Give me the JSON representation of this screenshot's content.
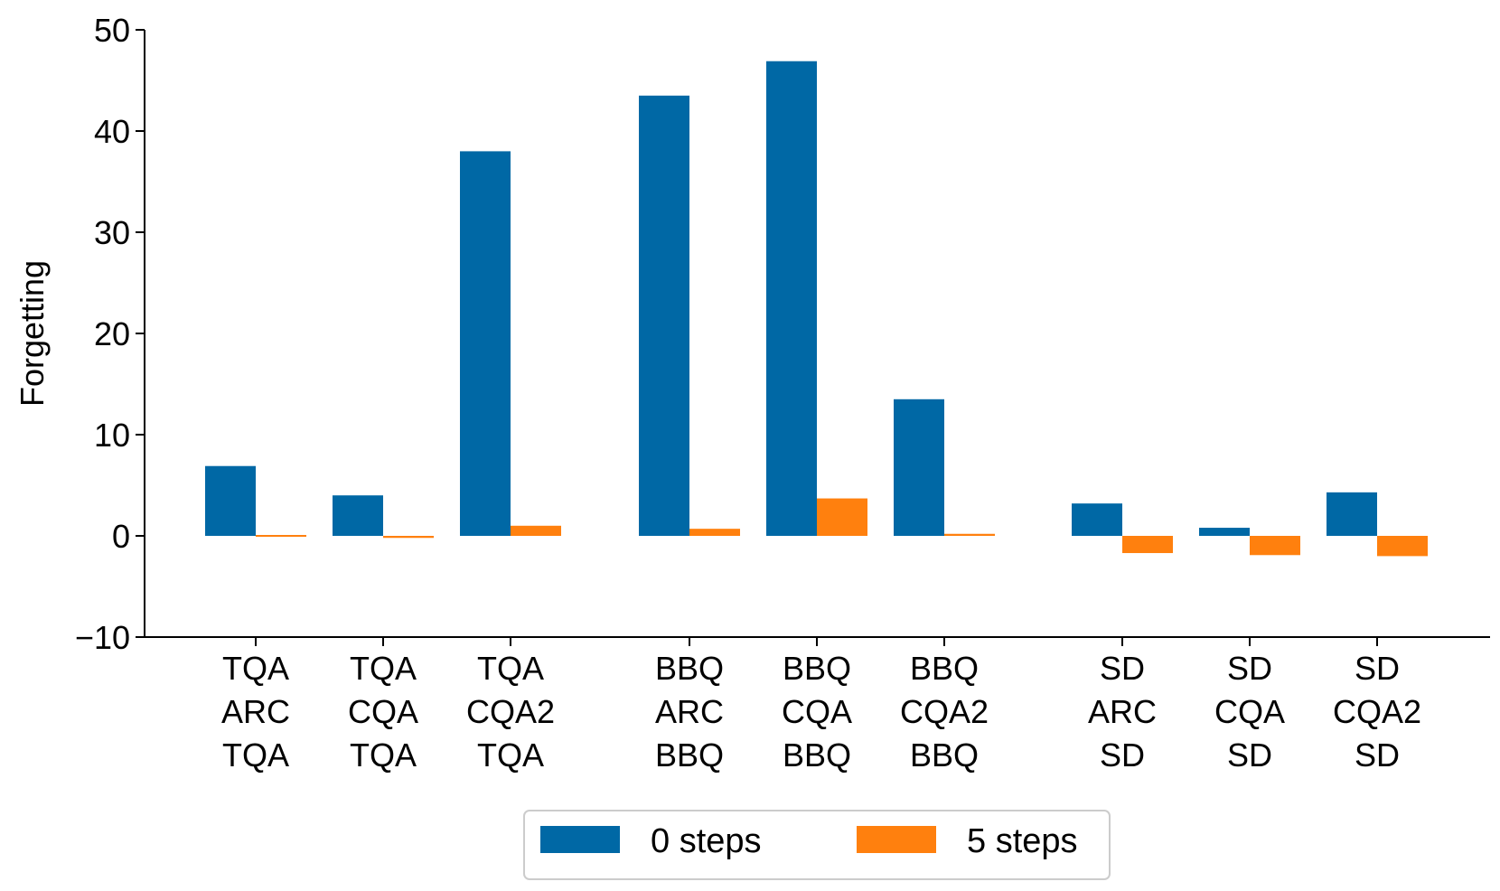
{
  "chart_data": {
    "type": "bar",
    "ylabel": "Forgetting",
    "xlabel": "",
    "ylim": [
      -10,
      50
    ],
    "yticks": [
      -10,
      0,
      10,
      20,
      30,
      40,
      50
    ],
    "ytick_labels": [
      "−10",
      "0",
      "10",
      "20",
      "30",
      "40",
      "50"
    ],
    "groups": [
      {
        "categories": [
          [
            "TQA",
            "ARC",
            "TQA"
          ],
          [
            "TQA",
            "CQA",
            "TQA"
          ],
          [
            "TQA",
            "CQA2",
            "TQA"
          ]
        ]
      },
      {
        "categories": [
          [
            "BBQ",
            "ARC",
            "BBQ"
          ],
          [
            "BBQ",
            "CQA",
            "BBQ"
          ],
          [
            "BBQ",
            "CQA2",
            "BBQ"
          ]
        ]
      },
      {
        "categories": [
          [
            "SD",
            "ARC",
            "SD"
          ],
          [
            "SD",
            "CQA",
            "SD"
          ],
          [
            "SD",
            "CQA2",
            "SD"
          ]
        ]
      }
    ],
    "series": [
      {
        "name": "0 steps",
        "color": "#0068a5",
        "values": [
          6.9,
          4.0,
          38.0,
          43.5,
          46.9,
          13.5,
          3.2,
          0.8,
          4.3
        ]
      },
      {
        "name": "5 steps",
        "color": "#ff800e",
        "values": [
          -0.1,
          -0.2,
          1.0,
          0.7,
          3.7,
          0.2,
          -1.7,
          -1.9,
          -2.0
        ]
      }
    ],
    "legend": {
      "position": "bottom-center",
      "columns": 2
    },
    "grid": false
  }
}
